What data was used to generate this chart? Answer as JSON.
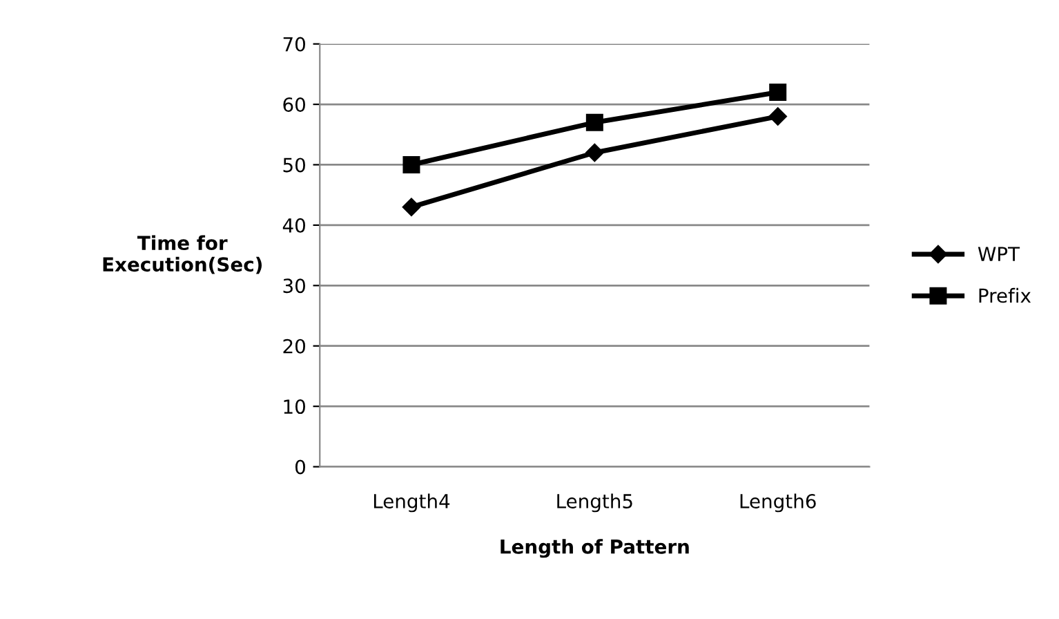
{
  "chart_data": {
    "type": "line",
    "xlabel": "Length of Pattern",
    "ylabel": "Time for\nExecution(Sec)",
    "categories": [
      "Length4",
      "Length5",
      "Length6"
    ],
    "series": [
      {
        "name": "WPT",
        "color": "#000000",
        "values": [
          43,
          52,
          58
        ],
        "marker": "diamond"
      },
      {
        "name": "Prefix",
        "color": "#000000",
        "values": [
          50,
          57,
          62
        ],
        "marker": "square"
      }
    ],
    "ylim": [
      0,
      70
    ],
    "yticks": [
      0,
      10,
      20,
      30,
      40,
      50,
      60,
      70
    ],
    "grid": "y",
    "legend": "right",
    "line_style": "solid"
  }
}
